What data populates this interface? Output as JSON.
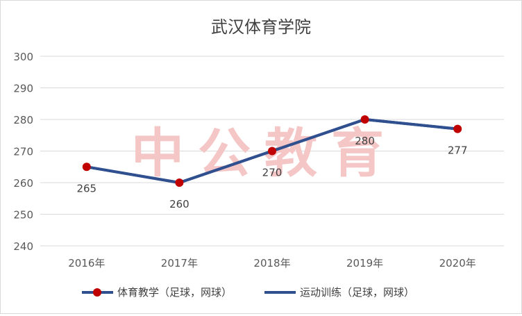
{
  "chart_data": {
    "type": "line",
    "title": "武汉体育学院",
    "watermark": "中公教育",
    "categories": [
      "2016年",
      "2017年",
      "2018年",
      "2019年",
      "2020年"
    ],
    "ylim": [
      240,
      300
    ],
    "yticks": [
      240,
      250,
      260,
      270,
      280,
      290,
      300
    ],
    "grid": true,
    "legend_position": "bottom",
    "series": [
      {
        "name": "体育教学（足球，网球）",
        "values": [
          265,
          260,
          270,
          280,
          277
        ],
        "data_labels": [
          "265",
          "260",
          "270",
          "280",
          "277"
        ],
        "line_color": "#2f4f8f",
        "marker_color": "#c00000",
        "marker": "circle"
      },
      {
        "name": "运动训练（足球，网球）",
        "values": [
          265,
          260,
          270,
          280,
          277
        ],
        "line_color": "#2f4f8f",
        "marker": "none"
      }
    ]
  }
}
